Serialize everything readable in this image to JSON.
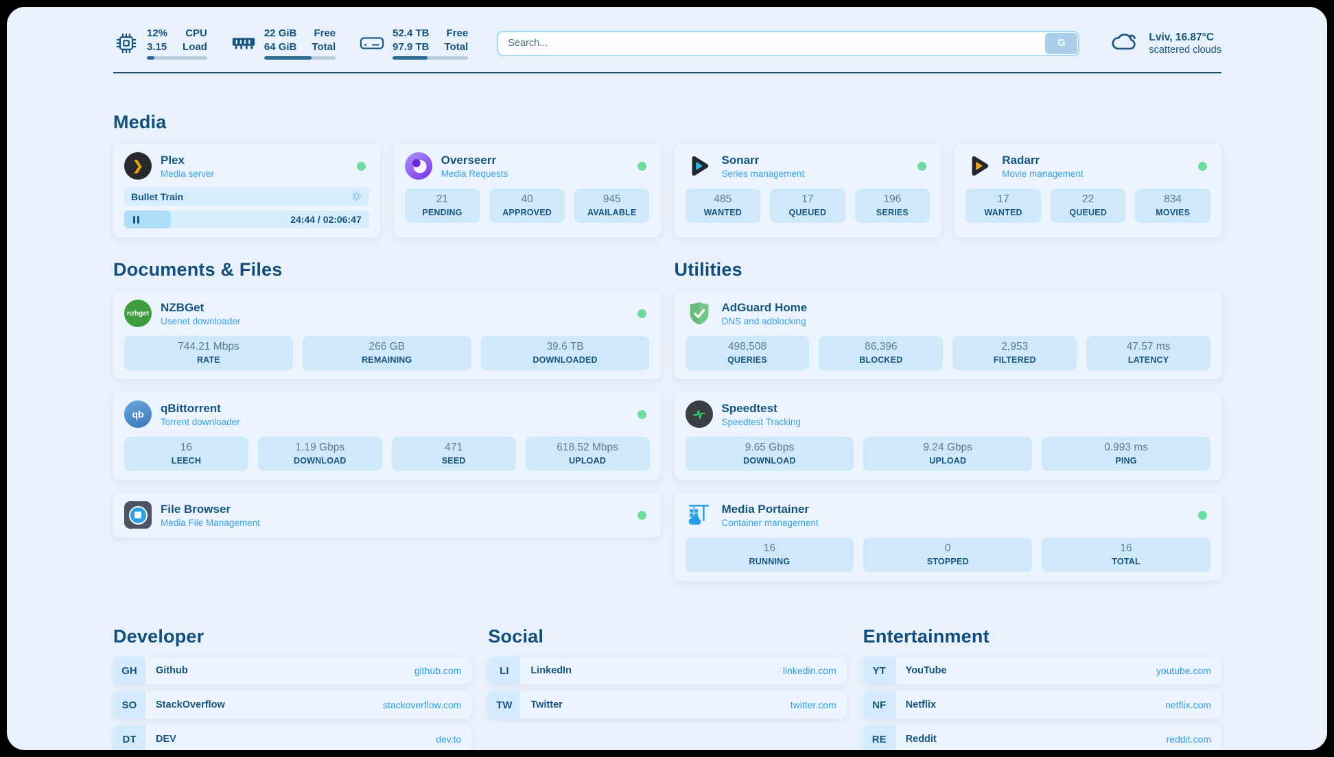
{
  "colors": {
    "page_bg": "#e9f1fa",
    "card_bg": "#ecf5fd",
    "stat_bg": "#cfe9fb",
    "tag_bg": "#d3ebfc",
    "navy": "#17537f",
    "heading": "#124e7d",
    "subtitle_blue": "#39a0e5",
    "link_blue": "#2f9ae0",
    "value_gray": "#5b7a94",
    "green_dot": "#6fdb9e",
    "bar_track": "#b9cdda",
    "bar_fill": "#2d6c99",
    "search_border": "#a5daf3",
    "search_button_bg": "#a9cfeb",
    "media_row_bg": "#d5edfc",
    "media_fill": "#aedff8",
    "divider": "#1b4f79"
  },
  "header": {
    "system_stats": [
      {
        "icon": "cpu-icon",
        "values": [
          "12%",
          "3.15"
        ],
        "labels": [
          "CPU",
          "Load"
        ],
        "progress_pct": 12
      },
      {
        "icon": "ram-icon",
        "values": [
          "22 GiB",
          "64 GiB"
        ],
        "labels": [
          "Free",
          "Total"
        ],
        "progress_pct": 66
      },
      {
        "icon": "disk-icon",
        "values": [
          "52.4 TB",
          "97.9 TB"
        ],
        "labels": [
          "Free",
          "Total"
        ],
        "progress_pct": 46
      }
    ],
    "search": {
      "placeholder": "Search...",
      "button_label": "G"
    },
    "weather": {
      "icon": "cloud-icon",
      "location": "Lviv, 16.87°C",
      "condition": "scattered clouds"
    }
  },
  "sections": {
    "media": {
      "title": "Media",
      "apps": [
        {
          "name": "Plex",
          "subtitle": "Media server",
          "online": true,
          "now_playing": {
            "title": "Bullet Train",
            "time": "24:44 / 02:06:47",
            "progress_pct": 19
          }
        },
        {
          "name": "Overseerr",
          "subtitle": "Media Requests",
          "online": true,
          "stats": [
            {
              "value": "21",
              "label": "PENDING"
            },
            {
              "value": "40",
              "label": "APPROVED"
            },
            {
              "value": "945",
              "label": "AVAILABLE"
            }
          ]
        },
        {
          "name": "Sonarr",
          "subtitle": "Series management",
          "online": true,
          "stats": [
            {
              "value": "485",
              "label": "WANTED"
            },
            {
              "value": "17",
              "label": "QUEUED"
            },
            {
              "value": "196",
              "label": "SERIES"
            }
          ]
        },
        {
          "name": "Radarr",
          "subtitle": "Movie management",
          "online": true,
          "stats": [
            {
              "value": "17",
              "label": "WANTED"
            },
            {
              "value": "22",
              "label": "QUEUED"
            },
            {
              "value": "834",
              "label": "MOVIES"
            }
          ]
        }
      ]
    },
    "documents": {
      "title": "Documents & Files",
      "apps": [
        {
          "name": "NZBGet",
          "subtitle": "Usenet downloader",
          "online": true,
          "icon_text": "nzbget",
          "stats": [
            {
              "value": "744.21 Mbps",
              "label": "RATE"
            },
            {
              "value": "266 GB",
              "label": "REMAINING"
            },
            {
              "value": "39.6 TB",
              "label": "DOWNLOADED"
            }
          ]
        },
        {
          "name": "qBittorrent",
          "subtitle": "Torrent downloader",
          "online": true,
          "icon_text": "qb",
          "stats": [
            {
              "value": "16",
              "label": "LEECH"
            },
            {
              "value": "1.19 Gbps",
              "label": "DOWNLOAD"
            },
            {
              "value": "471",
              "label": "SEED"
            },
            {
              "value": "618.52 Mbps",
              "label": "UPLOAD"
            }
          ]
        },
        {
          "name": "File Browser",
          "subtitle": "Media File Management",
          "online": true
        }
      ]
    },
    "utilities": {
      "title": "Utilities",
      "apps": [
        {
          "name": "AdGuard Home",
          "subtitle": "DNS and adblocking",
          "online": false,
          "stats": [
            {
              "value": "498,508",
              "label": "QUERIES"
            },
            {
              "value": "86,396",
              "label": "BLOCKED"
            },
            {
              "value": "2,953",
              "label": "FILTERED"
            },
            {
              "value": "47.57 ms",
              "label": "LATENCY"
            }
          ]
        },
        {
          "name": "Speedtest",
          "subtitle": "Speedtest Tracking",
          "online": false,
          "stats": [
            {
              "value": "9.65 Gbps",
              "label": "DOWNLOAD"
            },
            {
              "value": "9.24 Gbps",
              "label": "UPLOAD"
            },
            {
              "value": "0.993 ms",
              "label": "PING"
            }
          ]
        },
        {
          "name": "Media Portainer",
          "subtitle": "Container management",
          "online": true,
          "stats": [
            {
              "value": "16",
              "label": "RUNNING"
            },
            {
              "value": "0",
              "label": "STOPPED"
            },
            {
              "value": "16",
              "label": "TOTAL"
            }
          ]
        }
      ]
    },
    "bookmarks": [
      {
        "title": "Developer",
        "links": [
          {
            "tag": "GH",
            "name": "Github",
            "url": "github.com"
          },
          {
            "tag": "SO",
            "name": "StackOverflow",
            "url": "stackoverflow.com"
          },
          {
            "tag": "DT",
            "name": "DEV",
            "url": "dev.to"
          }
        ]
      },
      {
        "title": "Social",
        "links": [
          {
            "tag": "LI",
            "name": "LinkedIn",
            "url": "linkedin.com"
          },
          {
            "tag": "TW",
            "name": "Twitter",
            "url": "twitter.com"
          }
        ]
      },
      {
        "title": "Entertainment",
        "links": [
          {
            "tag": "YT",
            "name": "YouTube",
            "url": "youtube.com"
          },
          {
            "tag": "NF",
            "name": "Netflix",
            "url": "netflix.com"
          },
          {
            "tag": "RE",
            "name": "Reddit",
            "url": "reddit.com"
          }
        ]
      }
    ]
  }
}
